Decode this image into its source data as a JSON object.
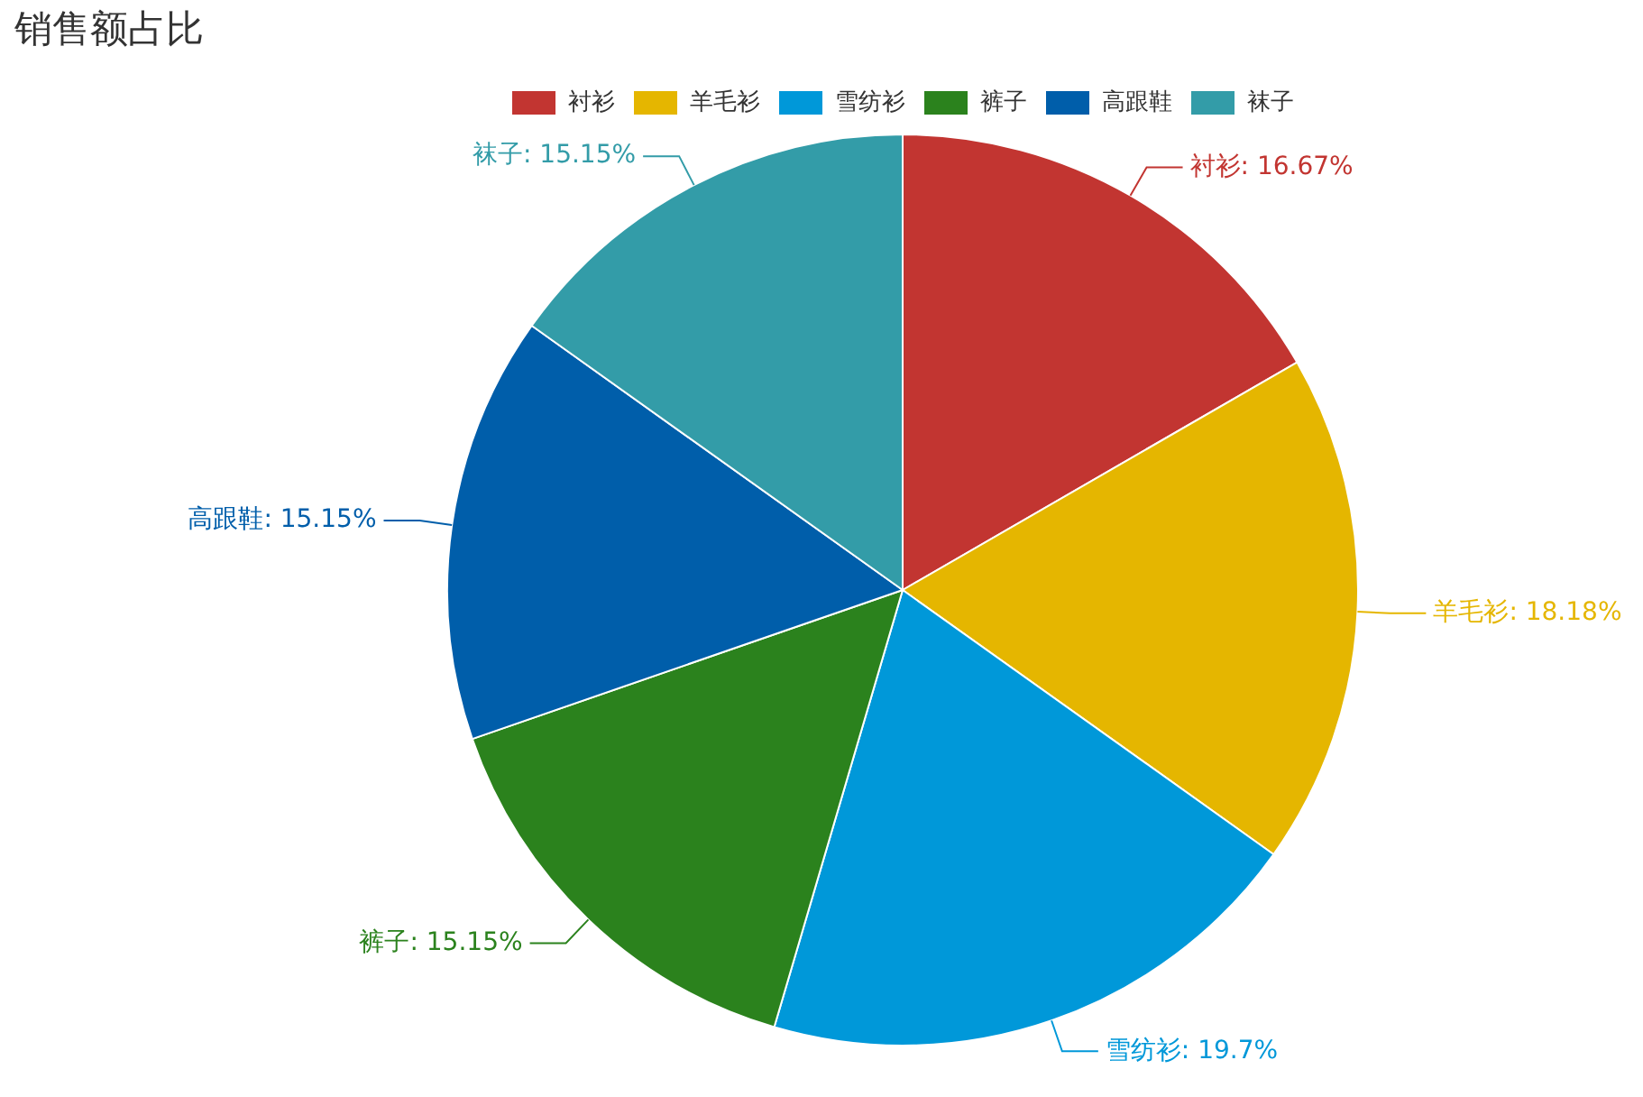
{
  "chart_data": {
    "type": "pie",
    "title": "销售额占比",
    "categories": [
      "衬衫",
      "羊毛衫",
      "雪纺衫",
      "裤子",
      "高跟鞋",
      "袜子"
    ],
    "values": [
      16.67,
      18.18,
      19.7,
      15.15,
      15.15,
      15.15
    ],
    "colors": [
      "#c23531",
      "#e5b600",
      "#0098d9",
      "#2b821d",
      "#005eaa",
      "#339ca8"
    ],
    "value_labels": [
      "衬衫: 16.67%",
      "羊毛衫: 18.18%",
      "雪纺衫: 19.7%",
      "裤子: 15.15%",
      "高跟鞋: 15.15%",
      "袜子: 15.15%"
    ],
    "legend": "top"
  }
}
